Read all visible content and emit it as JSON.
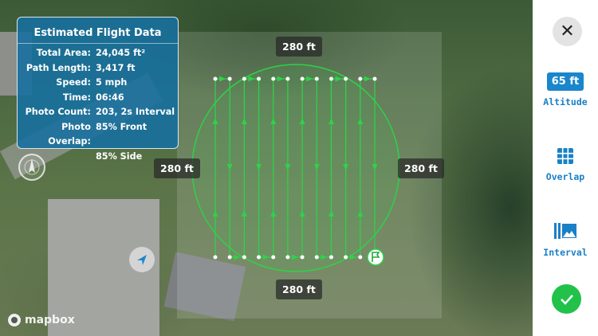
{
  "card": {
    "title": "Estimated Flight Data",
    "rows": [
      {
        "k": "Total Area:",
        "v": "24,045 ft²"
      },
      {
        "k": "Path Length:",
        "v": "3,417 ft"
      },
      {
        "k": "Speed:",
        "v": "5 mph"
      },
      {
        "k": "Time:",
        "v": "06:46"
      },
      {
        "k": "Photo Count:",
        "v": "203, 2s Interval"
      },
      {
        "k": "Photo Overlap:",
        "v": "85% Front"
      },
      {
        "k": "",
        "v": "85% Side"
      }
    ]
  },
  "map": {
    "dist_top": "280 ft",
    "dist_bottom": "280 ft",
    "dist_left": "280 ft",
    "dist_right": "280 ft",
    "attribution": "mapbox",
    "path_color": "#2fd14a",
    "flight_lines": 12
  },
  "sidebar": {
    "altitude_value": "65 ft",
    "altitude_label": "Altitude",
    "overlap_label": "Overlap",
    "interval_label": "Interval",
    "accent": "#1a86cc",
    "confirm_color": "#22c24a"
  }
}
